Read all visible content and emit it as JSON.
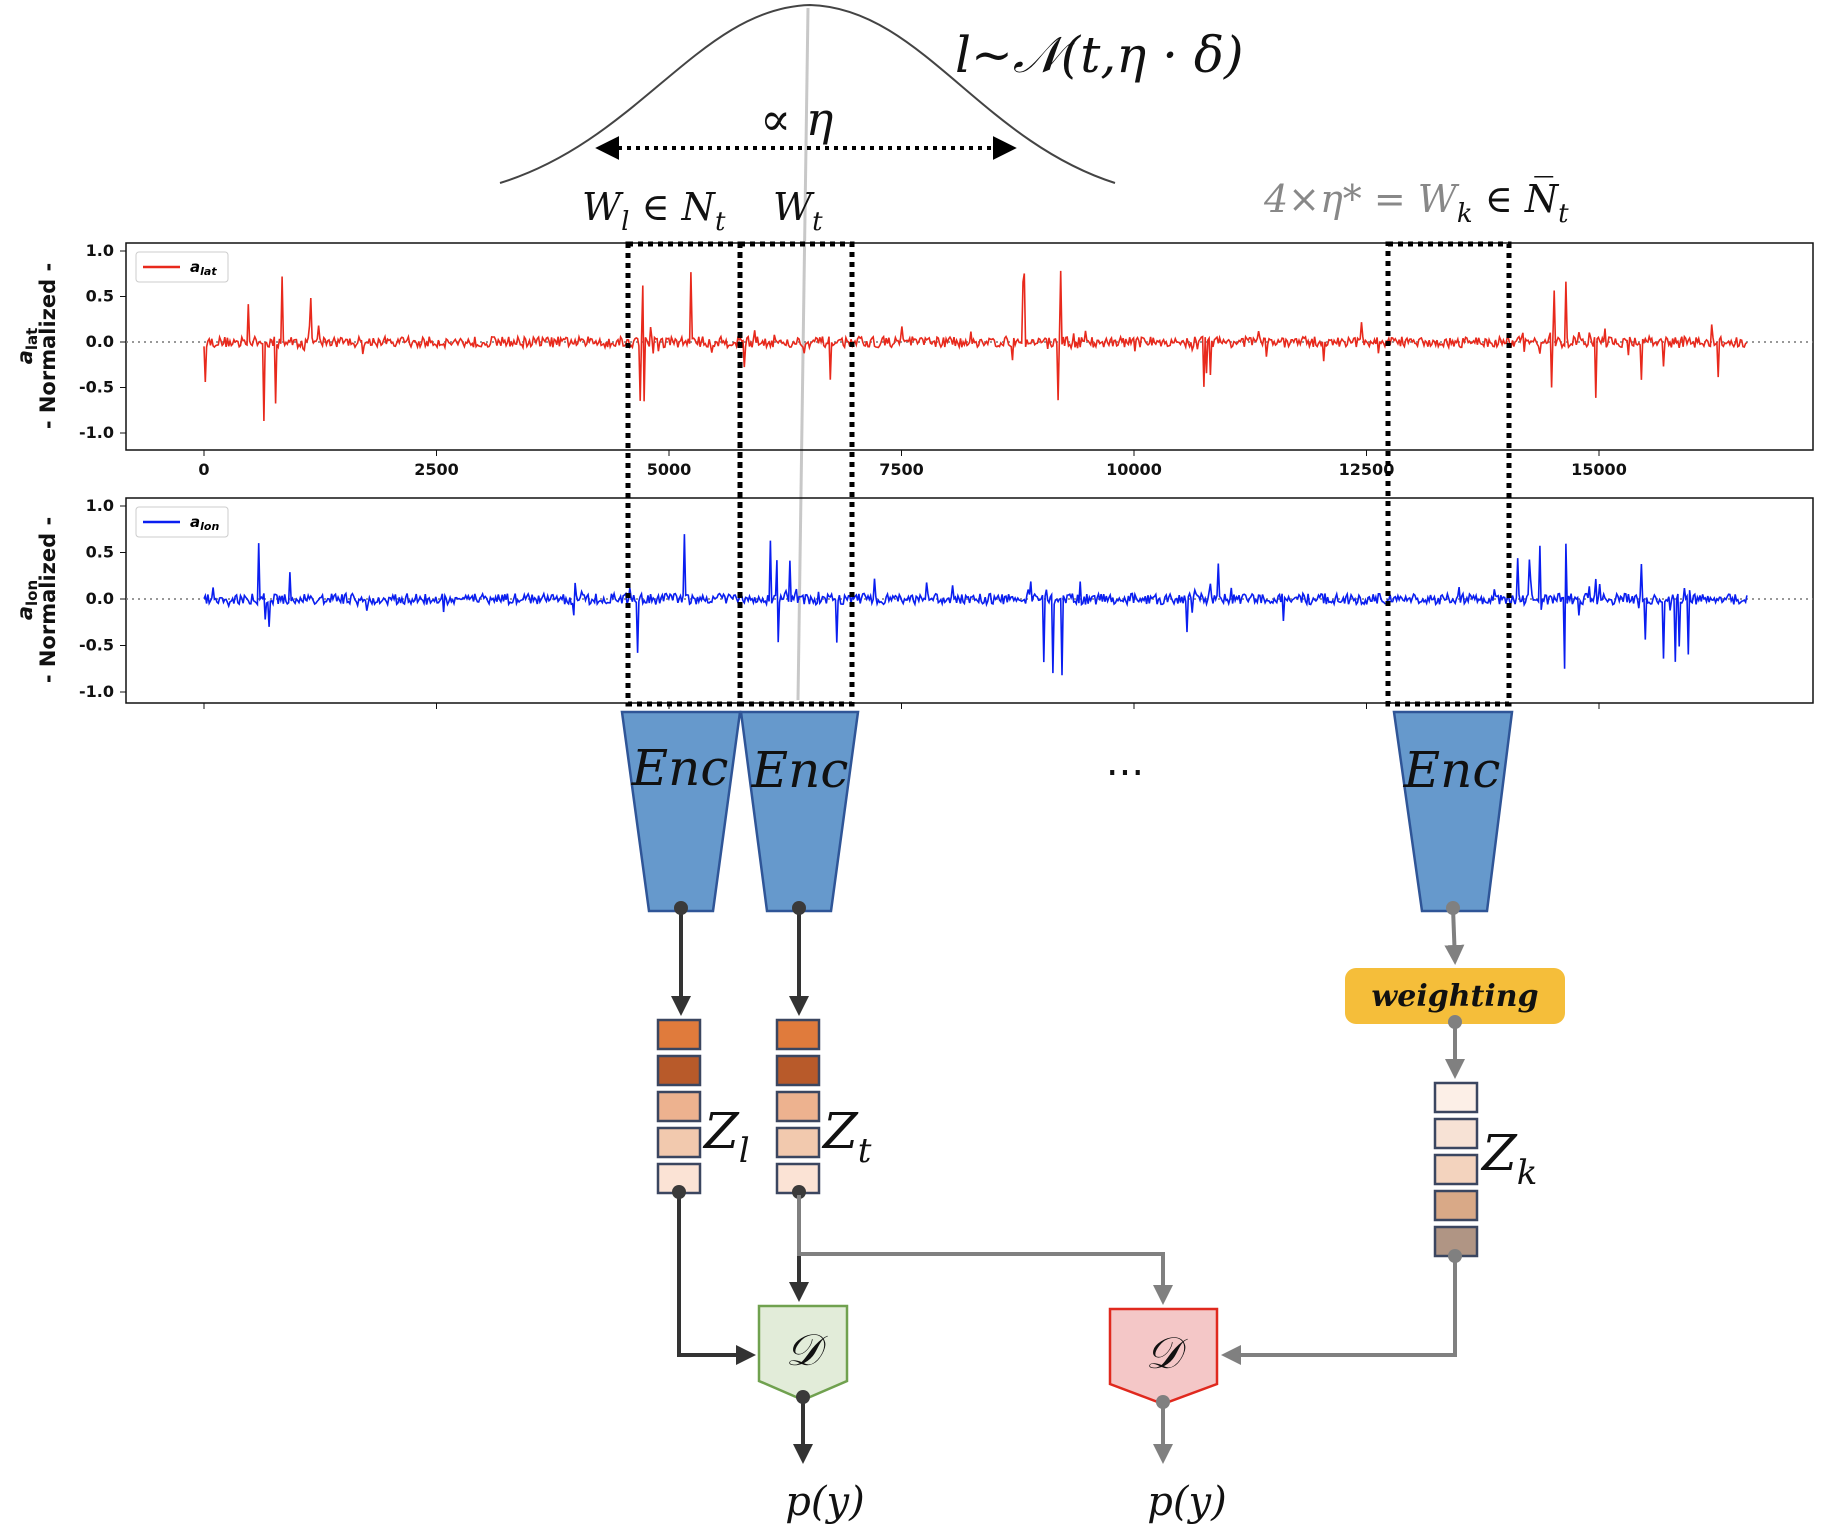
{
  "gaussian": {
    "formula": "l~𝒩(t,η · δ)",
    "width_label": "∝ η"
  },
  "windows": {
    "w_l": "W",
    "w_l_sub": "l",
    "w_l_rest": " ∈ N",
    "w_l_rest_sub": "t",
    "w_t": "W",
    "w_t_sub": "t",
    "w_k_prefix": "4×η* = W",
    "w_k_sub": "k",
    "w_k_rest": " ∈ N̅",
    "w_k_rest_sub": "t"
  },
  "plots": {
    "top": {
      "legend": "a",
      "legend_sub": "lat",
      "ylabel_line1": "a",
      "ylabel_line1_sub": "lat",
      "ylabel_line2": "- Normalized -",
      "color": "#e8291c"
    },
    "bottom": {
      "legend": "a",
      "legend_sub": "lon",
      "ylabel_line1": "a",
      "ylabel_line1_sub": "lon",
      "ylabel_line2": "- Normalized -",
      "color": "#0a1ef0"
    },
    "y_ticks": [
      "1.0",
      "0.5",
      "0.0",
      "-0.5",
      "-1.0"
    ],
    "x_ticks": [
      "0",
      "2500",
      "5000",
      "7500",
      "10000",
      "12500",
      "15000"
    ]
  },
  "encoders": {
    "label": "Enc",
    "ellipsis": "...",
    "color": "#6699cc"
  },
  "weighting": {
    "label": "weighting",
    "color": "#f5be3a"
  },
  "latents": {
    "z_l": "Z",
    "z_l_sub": "l",
    "z_t": "Z",
    "z_t_sub": "t",
    "z_k": "Z",
    "z_k_sub": "k"
  },
  "discriminators": {
    "label": "𝒟",
    "left_fill": "#e2ecd9",
    "left_stroke": "#70a14f",
    "right_fill": "#f4c7c7",
    "right_stroke": "#e0291e"
  },
  "outputs": {
    "left": "p(y)",
    "right": "p(y)"
  },
  "chart_data": [
    {
      "type": "line",
      "series": [
        {
          "name": "a_lat",
          "values": []
        }
      ],
      "xlim": [
        0,
        16600
      ],
      "ylim": [
        -1.0,
        1.0
      ],
      "x_ticks": [
        0,
        2500,
        5000,
        7500,
        10000,
        12500,
        15000
      ],
      "legend": "top-left"
    },
    {
      "type": "line",
      "series": [
        {
          "name": "a_lon",
          "values": []
        }
      ],
      "xlim": [
        0,
        16600
      ],
      "ylim": [
        -1.0,
        1.0
      ],
      "legend": "top-left"
    }
  ]
}
